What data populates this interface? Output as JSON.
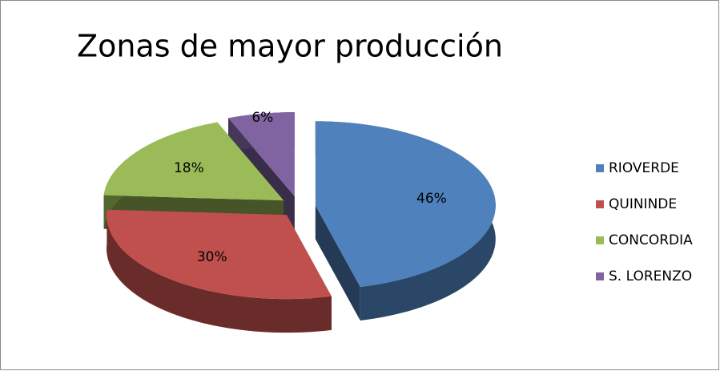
{
  "chart_data": {
    "type": "pie",
    "title": "Zonas de mayor producción",
    "categories": [
      "RIOVERDE",
      "QUININDE",
      "CONCORDIA",
      "S. LORENZO"
    ],
    "values": [
      46,
      30,
      18,
      6
    ],
    "value_labels": [
      "46%",
      "30%",
      "18%",
      "6%"
    ],
    "colors": [
      "#4f81bd",
      "#c0504d",
      "#9bbb59",
      "#8064a2"
    ],
    "legend": "right"
  }
}
